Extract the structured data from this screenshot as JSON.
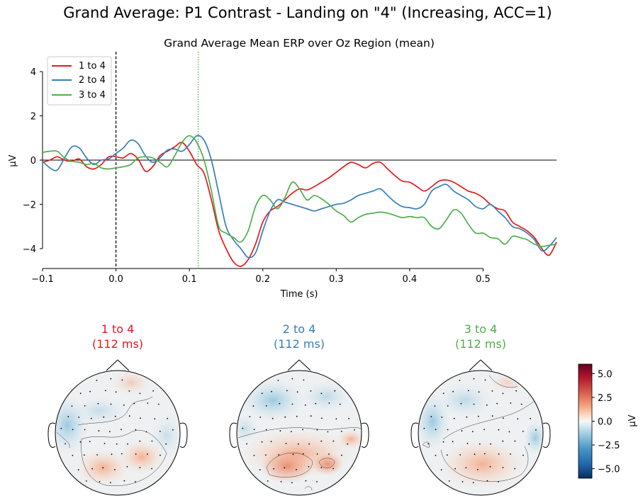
{
  "figure_title": "Grand Average: P1 Contrast - Landing on \"4\" (Increasing, ACC=1)",
  "chart_data": [
    {
      "type": "line",
      "title": "Grand Average Mean ERP over Oz Region (mean)",
      "xlabel": "Time (s)",
      "ylabel": "µV",
      "xlim": [
        -0.1,
        0.6
      ],
      "ylim": [
        -4.9,
        4.9
      ],
      "x_ticks": [
        -0.1,
        0.0,
        0.1,
        0.2,
        0.3,
        0.4,
        0.5
      ],
      "x_tick_labels": [
        "−0.1",
        "0.0",
        "0.1",
        "0.2",
        "0.3",
        "0.4",
        "0.5"
      ],
      "y_ticks": [
        4,
        2,
        0,
        -2,
        -4
      ],
      "y_tick_labels": [
        "4",
        "2",
        "0",
        "−2",
        "−4"
      ],
      "legend": "top-left",
      "grid": false,
      "markers": [
        {
          "x": 0.0,
          "style": "dashed",
          "color": "#000000"
        },
        {
          "x": 0.112,
          "style": "dotted",
          "color": "#4daf4a"
        }
      ],
      "series": [
        {
          "name": "1 to 4",
          "color": "#e41a1c",
          "x": [
            -0.1,
            -0.09,
            -0.08,
            -0.07,
            -0.06,
            -0.05,
            -0.04,
            -0.03,
            -0.02,
            -0.01,
            0.0,
            0.01,
            0.02,
            0.03,
            0.04,
            0.05,
            0.06,
            0.07,
            0.08,
            0.09,
            0.1,
            0.11,
            0.12,
            0.13,
            0.14,
            0.15,
            0.16,
            0.17,
            0.18,
            0.19,
            0.2,
            0.21,
            0.22,
            0.23,
            0.24,
            0.25,
            0.26,
            0.27,
            0.28,
            0.29,
            0.3,
            0.31,
            0.32,
            0.33,
            0.34,
            0.35,
            0.36,
            0.37,
            0.38,
            0.39,
            0.4,
            0.41,
            0.42,
            0.43,
            0.44,
            0.45,
            0.46,
            0.47,
            0.48,
            0.49,
            0.5,
            0.51,
            0.52,
            0.53,
            0.54,
            0.55,
            0.56,
            0.57,
            0.58,
            0.59,
            0.6
          ],
          "values": [
            -0.1,
            0.0,
            0.15,
            0.0,
            -0.05,
            0.05,
            -0.3,
            -0.4,
            -0.2,
            0.15,
            0.15,
            0.1,
            0.3,
            0.05,
            -0.5,
            -0.3,
            0.2,
            0.4,
            0.6,
            0.8,
            0.4,
            -0.2,
            -0.6,
            -1.8,
            -3.2,
            -4.0,
            -4.6,
            -4.8,
            -4.5,
            -3.8,
            -2.8,
            -2.3,
            -2.1,
            -1.8,
            -1.5,
            -1.3,
            -1.35,
            -1.2,
            -1.0,
            -0.8,
            -0.55,
            -0.3,
            -0.1,
            -0.2,
            -0.35,
            -0.15,
            -0.1,
            -0.4,
            -0.7,
            -0.95,
            -1.0,
            -1.2,
            -1.4,
            -1.2,
            -0.95,
            -0.9,
            -1.0,
            -1.2,
            -1.4,
            -1.5,
            -1.7,
            -2.0,
            -2.2,
            -2.3,
            -2.8,
            -3.0,
            -3.2,
            -3.5,
            -4.0,
            -4.3,
            -3.7
          ]
        },
        {
          "name": "2 to 4",
          "color": "#377eb8",
          "x": [
            -0.1,
            -0.09,
            -0.08,
            -0.07,
            -0.06,
            -0.05,
            -0.04,
            -0.03,
            -0.02,
            -0.01,
            0.0,
            0.01,
            0.02,
            0.03,
            0.04,
            0.05,
            0.06,
            0.07,
            0.08,
            0.09,
            0.1,
            0.11,
            0.12,
            0.13,
            0.14,
            0.15,
            0.16,
            0.17,
            0.18,
            0.19,
            0.2,
            0.21,
            0.22,
            0.23,
            0.24,
            0.25,
            0.26,
            0.27,
            0.28,
            0.29,
            0.3,
            0.31,
            0.32,
            0.33,
            0.34,
            0.35,
            0.36,
            0.37,
            0.38,
            0.39,
            0.4,
            0.41,
            0.42,
            0.43,
            0.44,
            0.45,
            0.46,
            0.47,
            0.48,
            0.49,
            0.5,
            0.51,
            0.52,
            0.53,
            0.54,
            0.55,
            0.56,
            0.57,
            0.58,
            0.59,
            0.6
          ],
          "values": [
            -0.05,
            -0.35,
            -0.45,
            0.1,
            0.6,
            0.55,
            0.1,
            -0.2,
            0.0,
            0.05,
            0.3,
            0.55,
            0.9,
            0.75,
            0.2,
            -0.1,
            0.1,
            0.45,
            0.5,
            0.4,
            0.7,
            1.1,
            0.9,
            0.0,
            -1.5,
            -3.0,
            -3.6,
            -4.0,
            -4.4,
            -4.2,
            -3.2,
            -2.3,
            -1.8,
            -1.9,
            -2.0,
            -2.1,
            -2.2,
            -2.3,
            -2.2,
            -2.1,
            -2.0,
            -1.95,
            -1.8,
            -1.6,
            -1.5,
            -1.4,
            -1.3,
            -1.6,
            -1.9,
            -2.1,
            -2.15,
            -2.2,
            -2.0,
            -1.4,
            -1.2,
            -1.1,
            -1.4,
            -1.6,
            -1.8,
            -2.1,
            -2.2,
            -2.0,
            -2.3,
            -2.6,
            -3.0,
            -3.1,
            -3.3,
            -3.6,
            -4.1,
            -3.9,
            -3.5
          ]
        },
        {
          "name": "3 to 4",
          "color": "#4daf4a",
          "x": [
            -0.1,
            -0.09,
            -0.08,
            -0.07,
            -0.06,
            -0.05,
            -0.04,
            -0.03,
            -0.02,
            -0.01,
            0.0,
            0.01,
            0.02,
            0.03,
            0.04,
            0.05,
            0.06,
            0.07,
            0.08,
            0.09,
            0.1,
            0.11,
            0.12,
            0.13,
            0.14,
            0.15,
            0.16,
            0.17,
            0.18,
            0.19,
            0.2,
            0.21,
            0.22,
            0.23,
            0.24,
            0.25,
            0.26,
            0.27,
            0.28,
            0.29,
            0.3,
            0.31,
            0.32,
            0.33,
            0.34,
            0.35,
            0.36,
            0.37,
            0.38,
            0.39,
            0.4,
            0.41,
            0.42,
            0.43,
            0.44,
            0.45,
            0.46,
            0.47,
            0.48,
            0.49,
            0.5,
            0.51,
            0.52,
            0.53,
            0.54,
            0.55,
            0.56,
            0.57,
            0.58,
            0.59,
            0.6
          ],
          "values": [
            0.35,
            0.4,
            0.4,
            0.1,
            -0.05,
            -0.1,
            -0.2,
            -0.15,
            -0.35,
            -0.4,
            -0.35,
            -0.3,
            -0.2,
            0.1,
            0.15,
            0.1,
            -0.1,
            -0.3,
            0.2,
            0.8,
            1.1,
            0.8,
            0.0,
            -1.4,
            -3.0,
            -3.3,
            -3.5,
            -3.7,
            -3.2,
            -2.1,
            -1.6,
            -1.8,
            -2.2,
            -1.7,
            -1.0,
            -1.3,
            -1.8,
            -1.6,
            -1.75,
            -2.0,
            -2.3,
            -2.5,
            -2.8,
            -2.6,
            -2.45,
            -2.4,
            -2.35,
            -2.4,
            -2.5,
            -2.6,
            -2.55,
            -2.6,
            -2.6,
            -3.0,
            -3.1,
            -2.7,
            -2.25,
            -2.4,
            -2.9,
            -3.3,
            -3.3,
            -3.5,
            -3.55,
            -3.8,
            -3.45,
            -3.5,
            -3.6,
            -3.8,
            -3.9,
            -3.85,
            -3.8
          ]
        }
      ]
    },
    {
      "type": "heatmap",
      "subtype": "topomap",
      "maps": [
        {
          "title_line1": "1 to 4",
          "title_line2": "(112 ms)",
          "color": "#e41a1c"
        },
        {
          "title_line1": "2 to 4",
          "title_line2": "(112 ms)",
          "color": "#377eb8"
        },
        {
          "title_line1": "3 to 4",
          "title_line2": "(112 ms)",
          "color": "#4daf4a"
        }
      ],
      "colorbar": {
        "label": "µV",
        "range": [
          -6.0,
          6.0
        ],
        "ticks": [
          5.0,
          2.5,
          0.0,
          -2.5,
          -5.0
        ],
        "tick_labels": [
          "5.0",
          "2.5",
          "0.0",
          "−2.5",
          "−5.0"
        ],
        "colormap": "RdBu_r"
      }
    }
  ]
}
